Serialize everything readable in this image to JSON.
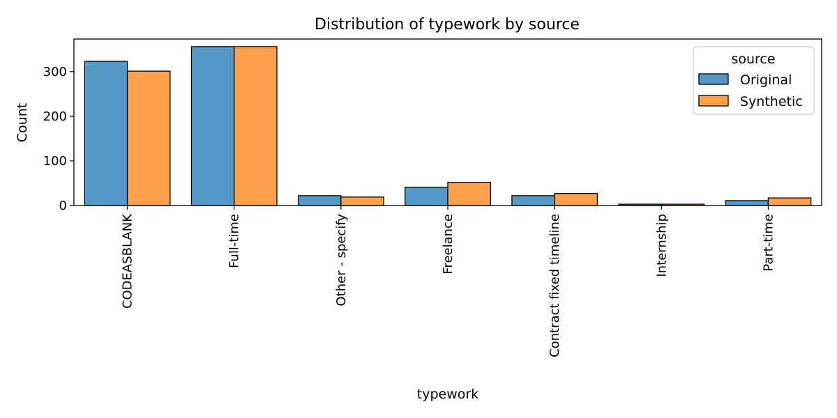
{
  "chart_data": {
    "type": "bar",
    "title": "Distribution of typework by source",
    "xlabel": "typework",
    "ylabel": "Count",
    "categories": [
      "CODEASBLANK",
      "Full-time",
      "Other - specify",
      "Freelance",
      "Contract fixed timeline",
      "Internship",
      "Part-time"
    ],
    "series": [
      {
        "name": "Original",
        "color": "#5499c7",
        "values": [
          323,
          356,
          22,
          41,
          22,
          3,
          11
        ]
      },
      {
        "name": "Synthetic",
        "color": "#ffa04c",
        "values": [
          301,
          356,
          19,
          52,
          27,
          3,
          17
        ]
      }
    ],
    "ylim": [
      0,
      373
    ],
    "yticks": [
      0,
      100,
      200,
      300
    ],
    "legend": {
      "title": "source",
      "placement": "top-right"
    },
    "grid": false
  }
}
